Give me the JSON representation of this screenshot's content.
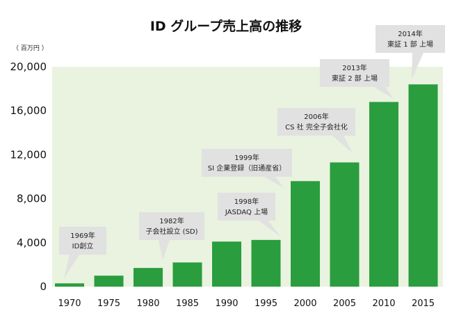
{
  "chart_data": {
    "type": "bar",
    "title": "ID グループ売上高の推移",
    "unit_label": "（ 百万円 ）",
    "categories": [
      "1970",
      "1975",
      "1980",
      "1985",
      "1990",
      "1995",
      "2000",
      "2005",
      "2010",
      "2015"
    ],
    "values": [
      300,
      1000,
      1700,
      2200,
      4100,
      4250,
      9600,
      11300,
      16800,
      18400
    ],
    "ylim": [
      0,
      20000
    ],
    "yticks": [
      "0",
      "4,000",
      "8,000",
      "12,000",
      "16,000",
      "20,000"
    ],
    "ytick_values": [
      0,
      4000,
      8000,
      12000,
      16000,
      20000
    ],
    "grid": false,
    "colors": {
      "bar": "#2a9d3e",
      "plot_bg": "#e9f3df",
      "callout": "#e1e1e1"
    },
    "annotations": [
      {
        "lines": [
          "1969年",
          "ID創立"
        ],
        "category": "1970"
      },
      {
        "lines": [
          "1982年",
          "子会社設立 (SD)"
        ],
        "category": "1985"
      },
      {
        "lines": [
          "1998年",
          "JASDAQ 上場"
        ],
        "category": "1995"
      },
      {
        "lines": [
          "1999年",
          "SI 企業登録（旧通産省）"
        ],
        "category": "1995"
      },
      {
        "lines": [
          "2006年",
          "CS 社 完全子会社化"
        ],
        "category": "2005"
      },
      {
        "lines": [
          "2013年",
          "東証 2 部 上場"
        ],
        "category": "2010"
      },
      {
        "lines": [
          "2014年",
          "東証 1 部 上場"
        ],
        "category": "2015"
      }
    ]
  }
}
